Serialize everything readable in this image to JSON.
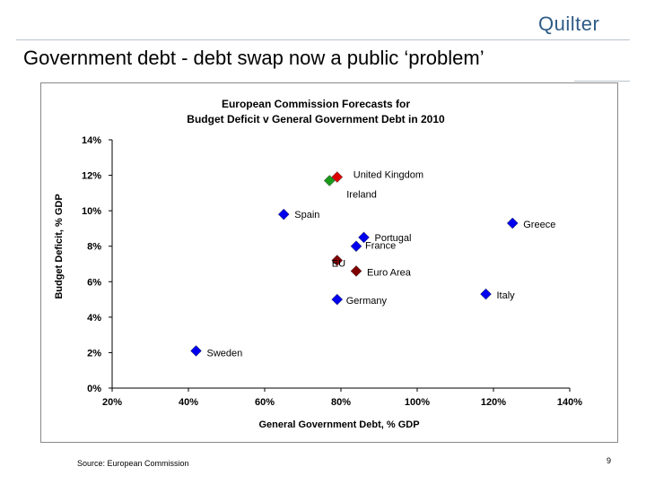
{
  "header": {
    "logo": "Quilter",
    "title": "Government debt - debt swap now a public ‘problem’"
  },
  "footer": {
    "source": "Source: European Commission",
    "page_number": "9"
  },
  "colors": {
    "series_default": "#0000ee",
    "united_kingdom": "#dd0000",
    "ireland": "#1a9a1a",
    "eu_aggregate": "#800000",
    "logo": "#2f5c86"
  },
  "chart_data": {
    "type": "scatter",
    "title_lines": [
      "European Commission Forecasts for",
      "Budget Deficit v General Government Debt in 2010"
    ],
    "xlabel": "General Government Debt, % GDP",
    "ylabel": "Budget Deficit, % GDP",
    "xlim": [
      20,
      140
    ],
    "ylim": [
      0,
      14
    ],
    "x_ticks": [
      20,
      40,
      60,
      80,
      100,
      120,
      140
    ],
    "x_tick_labels": [
      "20%",
      "40%",
      "60%",
      "80%",
      "100%",
      "120%",
      "140%"
    ],
    "y_ticks": [
      0,
      2,
      4,
      6,
      8,
      10,
      12,
      14
    ],
    "y_tick_labels": [
      "0%",
      "2%",
      "4%",
      "6%",
      "8%",
      "10%",
      "12%",
      "14%"
    ],
    "grid": false,
    "points": [
      {
        "label": "United Kingdom",
        "x": 79,
        "y": 11.9,
        "color": "#dd0000"
      },
      {
        "label": "Ireland",
        "x": 77,
        "y": 11.7,
        "color": "#1a9a1a"
      },
      {
        "label": "Spain",
        "x": 65,
        "y": 9.8,
        "color": "#0000ee"
      },
      {
        "label": "Greece",
        "x": 125,
        "y": 9.3,
        "color": "#0000ee"
      },
      {
        "label": "Portugal",
        "x": 86,
        "y": 8.5,
        "color": "#0000ee"
      },
      {
        "label": "France",
        "x": 84,
        "y": 8.0,
        "color": "#0000ee"
      },
      {
        "label": "EU",
        "x": 79,
        "y": 7.2,
        "color": "#800000"
      },
      {
        "label": "Euro Area",
        "x": 84,
        "y": 6.6,
        "color": "#800000"
      },
      {
        "label": "Germany",
        "x": 79,
        "y": 5.0,
        "color": "#0000ee"
      },
      {
        "label": "Italy",
        "x": 118,
        "y": 5.3,
        "color": "#0000ee"
      },
      {
        "label": "Sweden",
        "x": 42,
        "y": 2.1,
        "color": "#0000ee"
      }
    ]
  }
}
